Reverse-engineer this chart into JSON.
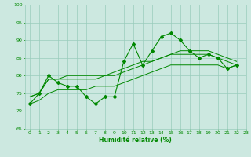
{
  "xlabel": "Humidité relative (%)",
  "xlim": [
    -0.5,
    23
  ],
  "ylim": [
    65,
    100
  ],
  "yticks": [
    65,
    70,
    75,
    80,
    85,
    90,
    95,
    100
  ],
  "xticks": [
    0,
    1,
    2,
    3,
    4,
    5,
    6,
    7,
    8,
    9,
    10,
    11,
    12,
    13,
    14,
    15,
    16,
    17,
    18,
    19,
    20,
    21,
    22,
    23
  ],
  "bg_color": "#cce8e0",
  "grid_color": "#99ccbb",
  "line_color": "#008800",
  "main_data": [
    72,
    75,
    80,
    78,
    77,
    77,
    74,
    72,
    74,
    74,
    84,
    89,
    83,
    87,
    91,
    92,
    90,
    87,
    85,
    86,
    85,
    82,
    83
  ],
  "smooth1": [
    74,
    75,
    79,
    79,
    79,
    79,
    79,
    79,
    80,
    80,
    81,
    82,
    83,
    84,
    85,
    86,
    86,
    86,
    86,
    86,
    85,
    84,
    83
  ],
  "smooth2": [
    74,
    75,
    79,
    79,
    80,
    80,
    80,
    80,
    80,
    81,
    82,
    83,
    84,
    84,
    85,
    86,
    87,
    87,
    87,
    87,
    86,
    85,
    84
  ],
  "smooth3": [
    72,
    73,
    75,
    76,
    76,
    76,
    76,
    77,
    77,
    77,
    78,
    79,
    80,
    81,
    82,
    83,
    83,
    83,
    83,
    83,
    83,
    82,
    83
  ]
}
